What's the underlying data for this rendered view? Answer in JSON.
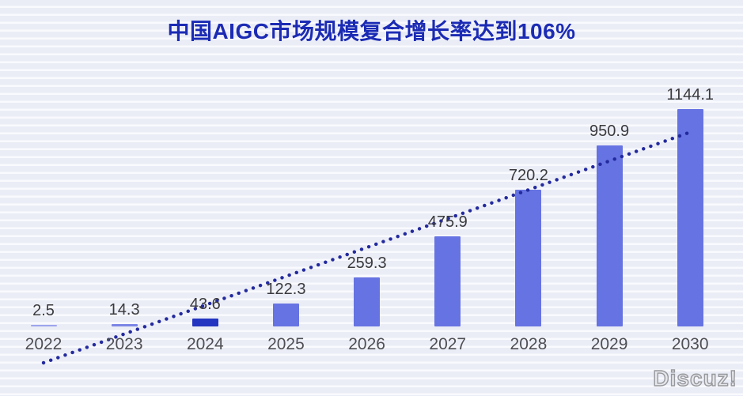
{
  "chart_data": {
    "type": "bar",
    "title": "中国AIGC市场规模复合增长率达到106%",
    "categories": [
      "2022",
      "2023",
      "2024",
      "2025",
      "2026",
      "2027",
      "2028",
      "2029",
      "2030"
    ],
    "values": [
      2.5,
      14.3,
      43.6,
      122.3,
      259.3,
      475.9,
      720.2,
      950.9,
      1144.1
    ],
    "bar_colors": [
      "#9CA5EC",
      "#7B85E5",
      "#2334C0",
      "#6673E2",
      "#6673E2",
      "#6673E2",
      "#6673E2",
      "#6673E2",
      "#6673E2"
    ],
    "highlighted_category": "2024",
    "ylim": [
      0,
      1200
    ],
    "grid": false,
    "legend": "none",
    "trendline": {
      "style": "dotted",
      "color": "#232A9E",
      "description": "rising dotted trend line from below 2022 to top of 2030 bar"
    },
    "title_color": "#1B2BB4",
    "value_label_color": "#3A3A3E",
    "axis_label_color": "#4E4E54"
  },
  "watermark": {
    "text": "Discuz!"
  }
}
